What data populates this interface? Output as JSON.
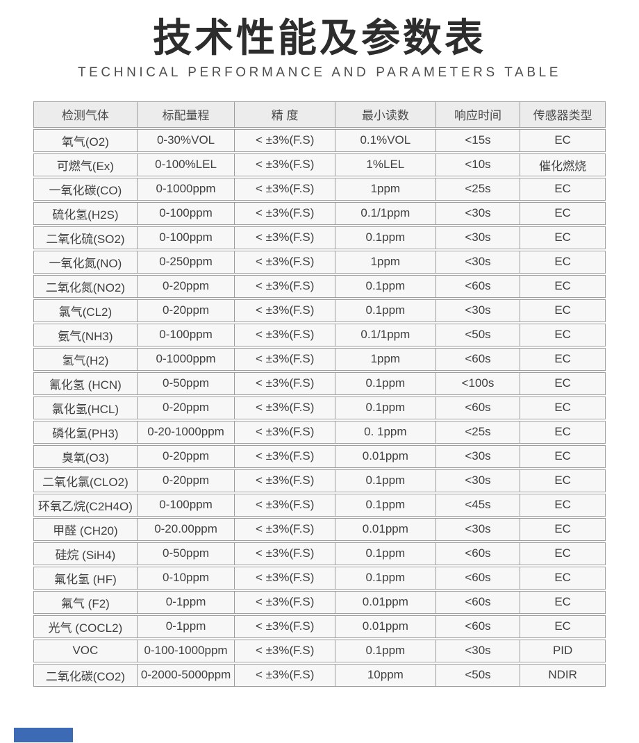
{
  "page": {
    "title": "技术性能及参数表",
    "subtitle": "TECHNICAL PERFORMANCE AND PARAMETERS TABLE"
  },
  "colors": {
    "accent_bar": "#3C6AB5",
    "header_bg": "#ECECEC",
    "row_bg": "#F7F7F7",
    "border": "#9D9D9D",
    "title_color": "#2D2D2D",
    "text": "#404040"
  },
  "table": {
    "headers": [
      "检测气体",
      "标配量程",
      "精 度",
      "最小读数",
      "响应时间",
      "传感器类型"
    ],
    "rows": [
      [
        "氧气(O2)",
        "0-30%VOL",
        "< ±3%(F.S)",
        "0.1%VOL",
        "<15s",
        "EC"
      ],
      [
        "可燃气(Ex)",
        "0-100%LEL",
        "< ±3%(F.S)",
        "1%LEL",
        "<10s",
        "催化燃烧"
      ],
      [
        "一氧化碳(CO)",
        "0-1000ppm",
        "< ±3%(F.S)",
        "1ppm",
        "<25s",
        "EC"
      ],
      [
        "硫化氢(H2S)",
        "0-100ppm",
        "< ±3%(F.S)",
        "0.1/1ppm",
        "<30s",
        "EC"
      ],
      [
        "二氧化硫(SO2)",
        "0-100ppm",
        "< ±3%(F.S)",
        "0.1ppm",
        "<30s",
        "EC"
      ],
      [
        "一氧化氮(NO)",
        "0-250ppm",
        "< ±3%(F.S)",
        "1ppm",
        "<30s",
        "EC"
      ],
      [
        "二氧化氮(NO2)",
        "0-20ppm",
        "< ±3%(F.S)",
        "0.1ppm",
        "<60s",
        "EC"
      ],
      [
        "氯气(CL2)",
        "0-20ppm",
        "< ±3%(F.S)",
        "0.1ppm",
        "<30s",
        "EC"
      ],
      [
        "氨气(NH3)",
        "0-100ppm",
        "< ±3%(F.S)",
        "0.1/1ppm",
        "<50s",
        "EC"
      ],
      [
        "氢气(H2)",
        "0-1000ppm",
        "< ±3%(F.S)",
        "1ppm",
        "<60s",
        "EC"
      ],
      [
        "氰化氢 (HCN)",
        "0-50ppm",
        "< ±3%(F.S)",
        "0.1ppm",
        "<100s",
        "EC"
      ],
      [
        "氯化氢(HCL)",
        "0-20ppm",
        "< ±3%(F.S)",
        "0.1ppm",
        "<60s",
        "EC"
      ],
      [
        "磷化氢(PH3)",
        "0-20-1000ppm",
        "< ±3%(F.S)",
        "0. 1ppm",
        "<25s",
        "EC"
      ],
      [
        "臭氧(O3)",
        "0-20ppm",
        "< ±3%(F.S)",
        "0.01ppm",
        "<30s",
        "EC"
      ],
      [
        "二氧化氯(CLO2)",
        "0-20ppm",
        "< ±3%(F.S)",
        "0.1ppm",
        "<30s",
        "EC"
      ],
      [
        "环氧乙烷(C2H4O)",
        "0-100ppm",
        "< ±3%(F.S)",
        "0.1ppm",
        "<45s",
        "EC"
      ],
      [
        "甲醛 (CH20)",
        "0-20.00ppm",
        "< ±3%(F.S)",
        "0.01ppm",
        "<30s",
        "EC"
      ],
      [
        "硅烷 (SiH4)",
        "0-50ppm",
        "< ±3%(F.S)",
        "0.1ppm",
        "<60s",
        "EC"
      ],
      [
        "氟化氢 (HF)",
        "0-10ppm",
        "< ±3%(F.S)",
        "0.1ppm",
        "<60s",
        "EC"
      ],
      [
        "氟气 (F2)",
        "0-1ppm",
        "< ±3%(F.S)",
        "0.01ppm",
        "<60s",
        "EC"
      ],
      [
        "光气 (COCL2)",
        "0-1ppm",
        "< ±3%(F.S)",
        "0.01ppm",
        "<60s",
        "EC"
      ],
      [
        "VOC",
        "0-100-1000ppm",
        "< ±3%(F.S)",
        "0.1ppm",
        "<30s",
        "PID"
      ],
      [
        "二氧化碳(CO2)",
        "0-2000-5000ppm",
        "< ±3%(F.S)",
        "10ppm",
        "<50s",
        "NDIR"
      ]
    ]
  }
}
